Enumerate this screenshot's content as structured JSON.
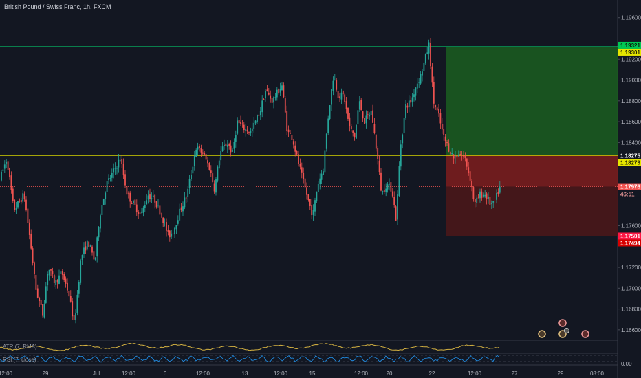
{
  "header": {
    "title": "British Pound / Swiss Franc, 1h, FXCM"
  },
  "indicators": {
    "atr_label": "ATR (7, RMA)",
    "rsi_label": "RSI (7, close)"
  },
  "colors": {
    "background": "#131722",
    "up": "#26a69a",
    "down": "#ef5350",
    "tp_zone": "#1b5e20",
    "sl_zone": "#7f1d1d",
    "entry_line": "#d4d400",
    "target_line": "#00e676",
    "stop_line": "#ff1744",
    "atr": "#d6b341",
    "rsi": "#2196f3"
  },
  "chart_data": {
    "type": "candlestick",
    "symbol": "British Pound / Swiss Franc",
    "interval": "1h",
    "source": "FXCM",
    "ylim": [
      1.165,
      1.1975
    ],
    "y_ticks": [
      "1.19600",
      "1.19200",
      "1.19000",
      "1.18800",
      "1.18600",
      "1.18400",
      "1.17600",
      "1.17200",
      "1.17000",
      "1.16800",
      "1.16600"
    ],
    "x_ticks": [
      "12:00",
      "29",
      "Jul",
      "12:00",
      "6",
      "12:00",
      "13",
      "12:00",
      "15",
      "12:00",
      "20",
      "22",
      "12:00",
      "27",
      "29",
      "08:00"
    ],
    "price_path": [
      [
        0,
        1.1805
      ],
      [
        10,
        1.1825
      ],
      [
        20,
        1.1775
      ],
      [
        35,
        1.179
      ],
      [
        45,
        1.174
      ],
      [
        52,
        1.17
      ],
      [
        62,
        1.1675
      ],
      [
        70,
        1.172
      ],
      [
        80,
        1.1705
      ],
      [
        90,
        1.1715
      ],
      [
        100,
        1.1695
      ],
      [
        108,
        1.1665
      ],
      [
        118,
        1.173
      ],
      [
        128,
        1.1745
      ],
      [
        138,
        1.1725
      ],
      [
        145,
        1.177
      ],
      [
        155,
        1.18
      ],
      [
        165,
        1.1812
      ],
      [
        175,
        1.1825
      ],
      [
        185,
        1.179
      ],
      [
        195,
        1.178
      ],
      [
        205,
        1.177
      ],
      [
        215,
        1.179
      ],
      [
        225,
        1.1785
      ],
      [
        235,
        1.177
      ],
      [
        245,
        1.175
      ],
      [
        252,
        1.1755
      ],
      [
        262,
        1.1775
      ],
      [
        272,
        1.179
      ],
      [
        285,
        1.1835
      ],
      [
        295,
        1.183
      ],
      [
        305,
        1.1815
      ],
      [
        312,
        1.1795
      ],
      [
        320,
        1.183
      ],
      [
        330,
        1.184
      ],
      [
        338,
        1.183
      ],
      [
        345,
        1.186
      ],
      [
        352,
        1.1855
      ],
      [
        365,
        1.185
      ],
      [
        378,
        1.187
      ],
      [
        386,
        1.189
      ],
      [
        396,
        1.188
      ],
      [
        410,
        1.1895
      ],
      [
        418,
        1.185
      ],
      [
        425,
        1.1845
      ],
      [
        432,
        1.1825
      ],
      [
        442,
        1.18
      ],
      [
        450,
        1.178
      ],
      [
        455,
        1.177
      ],
      [
        462,
        1.18
      ],
      [
        470,
        1.1815
      ],
      [
        478,
        1.187
      ],
      [
        485,
        1.1905
      ],
      [
        492,
        1.1885
      ],
      [
        500,
        1.1885
      ],
      [
        508,
        1.1855
      ],
      [
        516,
        1.1845
      ],
      [
        522,
        1.188
      ],
      [
        530,
        1.186
      ],
      [
        540,
        1.187
      ],
      [
        548,
        1.183
      ],
      [
        555,
        1.179
      ],
      [
        562,
        1.18
      ],
      [
        570,
        1.1795
      ],
      [
        576,
        1.1765
      ],
      [
        582,
        1.1835
      ],
      [
        590,
        1.1875
      ],
      [
        598,
        1.188
      ],
      [
        605,
        1.1895
      ],
      [
        612,
        1.1905
      ],
      [
        618,
        1.192
      ],
      [
        624,
        1.1935
      ],
      [
        630,
        1.188
      ],
      [
        638,
        1.1865
      ],
      [
        645,
        1.1845
      ],
      [
        652,
        1.1835
      ],
      [
        660,
        1.1825
      ],
      [
        668,
        1.183
      ],
      [
        676,
        1.1825
      ],
      [
        684,
        1.1805
      ],
      [
        690,
        1.178
      ],
      [
        698,
        1.179
      ],
      [
        706,
        1.179
      ],
      [
        712,
        1.1782
      ],
      [
        718,
        1.178
      ],
      [
        724,
        1.1792
      ],
      [
        728,
        1.1798
      ]
    ],
    "levels": {
      "target": "1.19321",
      "target_secondary": "1.19301",
      "entry": "1.18275",
      "entry_secondary": "1.18273",
      "current": "1.17976",
      "countdown": "46:51",
      "stop": "1.17501",
      "stop_secondary": "1.17494"
    },
    "levels_num": {
      "target": 1.19321,
      "entry": 1.18275,
      "current": 1.17976,
      "stop": 1.17501
    }
  }
}
